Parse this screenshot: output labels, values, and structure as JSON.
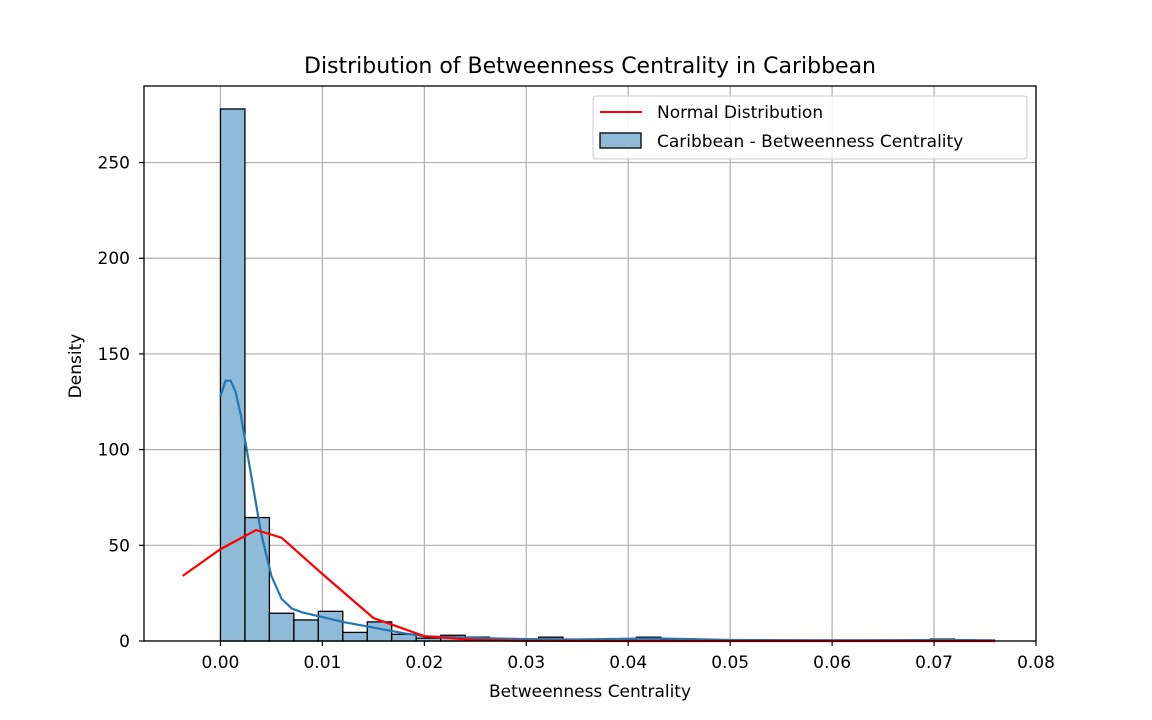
{
  "chart_data": {
    "type": "histogram",
    "title": "Distribution of Betweenness Centrality in Caribbean",
    "xlabel": "Betweenness Centrality",
    "ylabel": "Density",
    "xlim": [
      -0.0075,
      0.08
    ],
    "ylim": [
      0,
      290
    ],
    "xticks": [
      0.0,
      0.01,
      0.02,
      0.03,
      0.04,
      0.05,
      0.06,
      0.07,
      0.08
    ],
    "xtick_labels": [
      "0.00",
      "0.01",
      "0.02",
      "0.03",
      "0.04",
      "0.05",
      "0.06",
      "0.07",
      "0.08"
    ],
    "yticks": [
      0,
      50,
      100,
      150,
      200,
      250
    ],
    "ytick_labels": [
      "0",
      "50",
      "100",
      "150",
      "200",
      "250"
    ],
    "grid": true,
    "legend_position": "top-right",
    "colors": {
      "bar_fill": "#8fbbd9",
      "bar_edge": "#000000",
      "kde_line": "#1f77b4",
      "normal_line": "#ff0000",
      "grid": "#b0b0b0"
    },
    "bins": [
      {
        "x0": 0.0,
        "x1": 0.0024,
        "value": 278
      },
      {
        "x0": 0.0024,
        "x1": 0.0048,
        "value": 64.5
      },
      {
        "x0": 0.0048,
        "x1": 0.0072,
        "value": 14.5
      },
      {
        "x0": 0.0072,
        "x1": 0.0096,
        "value": 11
      },
      {
        "x0": 0.0096,
        "x1": 0.012,
        "value": 15.5
      },
      {
        "x0": 0.012,
        "x1": 0.0144,
        "value": 4.5
      },
      {
        "x0": 0.0144,
        "x1": 0.0168,
        "value": 10
      },
      {
        "x0": 0.0168,
        "x1": 0.0192,
        "value": 3.5
      },
      {
        "x0": 0.0192,
        "x1": 0.0216,
        "value": 1.5
      },
      {
        "x0": 0.0216,
        "x1": 0.024,
        "value": 3
      },
      {
        "x0": 0.024,
        "x1": 0.0264,
        "value": 2
      },
      {
        "x0": 0.0264,
        "x1": 0.0288,
        "value": 1
      },
      {
        "x0": 0.0288,
        "x1": 0.0312,
        "value": 1
      },
      {
        "x0": 0.0312,
        "x1": 0.0336,
        "value": 2
      },
      {
        "x0": 0.0336,
        "x1": 0.036,
        "value": 0.5
      },
      {
        "x0": 0.036,
        "x1": 0.0384,
        "value": 0.5
      },
      {
        "x0": 0.0384,
        "x1": 0.0408,
        "value": 1
      },
      {
        "x0": 0.0408,
        "x1": 0.0432,
        "value": 2
      },
      {
        "x0": 0.0432,
        "x1": 0.0456,
        "value": 0.5
      },
      {
        "x0": 0.0456,
        "x1": 0.048,
        "value": 0.5
      },
      {
        "x0": 0.048,
        "x1": 0.0504,
        "value": 0.5
      },
      {
        "x0": 0.0504,
        "x1": 0.0528,
        "value": 0.5
      },
      {
        "x0": 0.0528,
        "x1": 0.0552,
        "value": 0.5
      },
      {
        "x0": 0.0552,
        "x1": 0.0576,
        "value": 0.5
      },
      {
        "x0": 0.0576,
        "x1": 0.06,
        "value": 0.5
      },
      {
        "x0": 0.06,
        "x1": 0.0624,
        "value": 0.5
      },
      {
        "x0": 0.0624,
        "x1": 0.0648,
        "value": 0.5
      },
      {
        "x0": 0.0648,
        "x1": 0.0672,
        "value": 0.5
      },
      {
        "x0": 0.0672,
        "x1": 0.0696,
        "value": 0.5
      },
      {
        "x0": 0.0696,
        "x1": 0.072,
        "value": 1
      }
    ],
    "series": [
      {
        "name": "Normal Distribution",
        "kind": "line",
        "x": [
          -0.0037,
          0.0,
          0.0035,
          0.006,
          0.01,
          0.015,
          0.02,
          0.025,
          0.03,
          0.04,
          0.05,
          0.06,
          0.07,
          0.076
        ],
        "y": [
          34,
          48,
          58,
          54,
          35,
          12,
          2.5,
          0.5,
          0.1,
          0,
          0,
          0,
          0,
          0
        ]
      },
      {
        "name": "Caribbean - Betweenness Centrality",
        "kind": "bar"
      },
      {
        "name": "",
        "kind": "kde",
        "x": [
          0.0,
          0.0005,
          0.001,
          0.0015,
          0.002,
          0.003,
          0.004,
          0.005,
          0.006,
          0.007,
          0.008,
          0.01,
          0.012,
          0.015,
          0.018,
          0.02,
          0.025,
          0.03,
          0.035,
          0.04,
          0.043,
          0.05,
          0.06,
          0.07,
          0.072,
          0.076
        ],
        "y": [
          128,
          136,
          136,
          130,
          118,
          87,
          56,
          34,
          22,
          17,
          15,
          12.5,
          10,
          7,
          4,
          2.5,
          1.5,
          1,
          0.8,
          1.2,
          1.3,
          0.5,
          0.3,
          0.5,
          0.5,
          0.3
        ]
      }
    ]
  }
}
